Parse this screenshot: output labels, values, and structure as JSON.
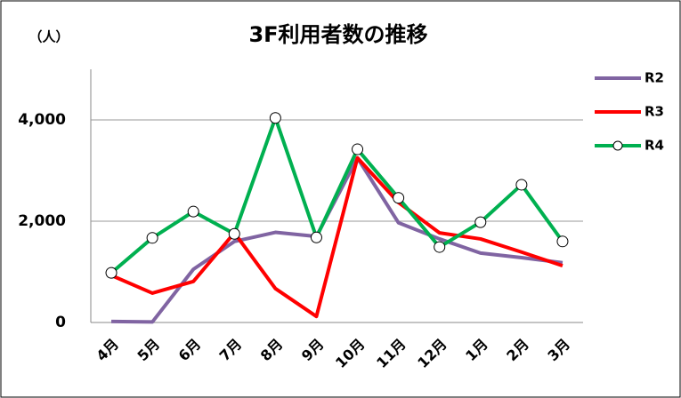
{
  "chart_data": {
    "type": "line",
    "title": "3F利用者数の推移",
    "y_label": "（人）",
    "categories": [
      "4月",
      "5月",
      "6月",
      "7月",
      "8月",
      "9月",
      "10月",
      "11月",
      "12月",
      "1月",
      "2月",
      "3月"
    ],
    "series": [
      {
        "name": "R2",
        "color": "#8064a2",
        "values": [
          20,
          10,
          1050,
          1600,
          1780,
          1700,
          3250,
          1970,
          1650,
          1370,
          1280,
          1180
        ]
      },
      {
        "name": "R3",
        "color": "#ff0000",
        "values": [
          930,
          580,
          810,
          1770,
          670,
          120,
          3250,
          2370,
          1770,
          1650,
          1390,
          1120
        ]
      },
      {
        "name": "R4",
        "color": "#00b050",
        "marker": "circle",
        "values": [
          980,
          1670,
          2190,
          1750,
          4040,
          1680,
          3420,
          2460,
          1490,
          1980,
          2720,
          1600
        ]
      }
    ],
    "ylim": [
      0,
      5000
    ],
    "yticks": [
      0,
      {
        "value": 2000,
        "label": "2,000"
      },
      {
        "value": 4000,
        "label": "4,000"
      }
    ],
    "grid": true,
    "legend": "right"
  }
}
